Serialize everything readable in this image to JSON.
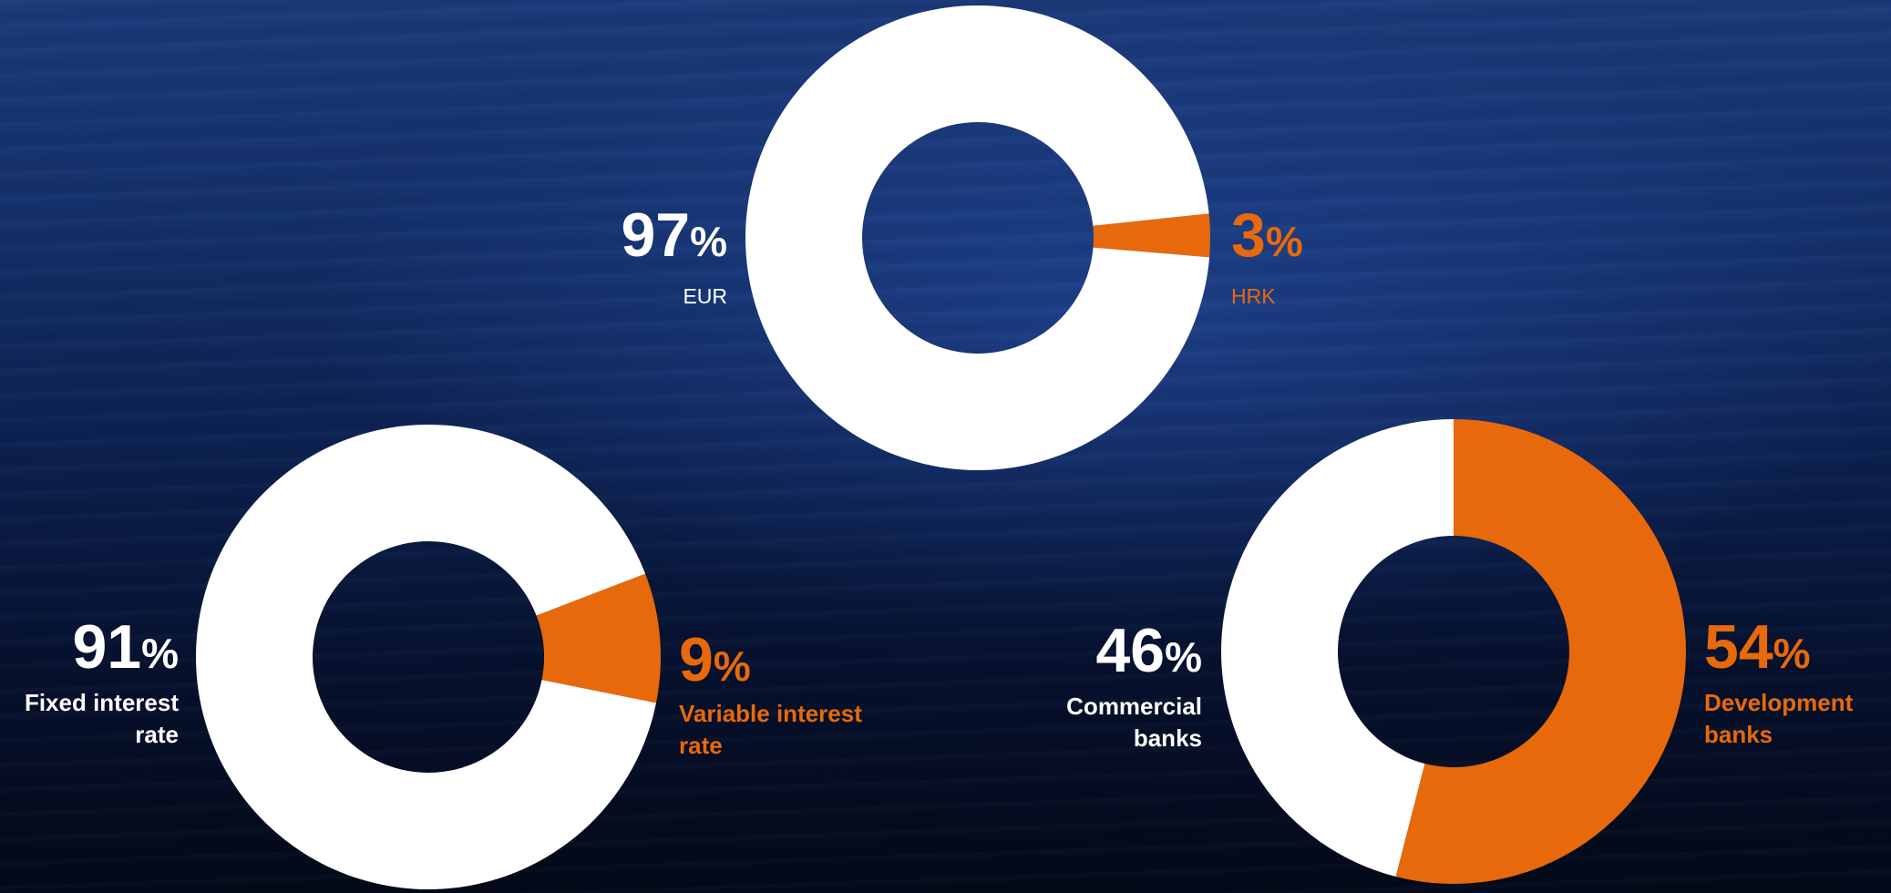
{
  "chart_data": [
    {
      "type": "donut",
      "categories": [
        "EUR",
        "HRK"
      ],
      "values": [
        97,
        3
      ],
      "value_labels": [
        "97%",
        "3%"
      ],
      "colors": [
        "#ffffff",
        "#e8690b"
      ]
    },
    {
      "type": "donut",
      "categories": [
        "Fixed interest rate",
        "Variable interest rate"
      ],
      "values": [
        91,
        9
      ],
      "value_labels": [
        "91%",
        "9%"
      ],
      "colors": [
        "#ffffff",
        "#e8690b"
      ]
    },
    {
      "type": "donut",
      "categories": [
        "Commercial banks",
        "Development banks"
      ],
      "values": [
        46,
        54
      ],
      "value_labels": [
        "46%",
        "54%"
      ],
      "colors": [
        "#ffffff",
        "#e8690b"
      ]
    }
  ]
}
